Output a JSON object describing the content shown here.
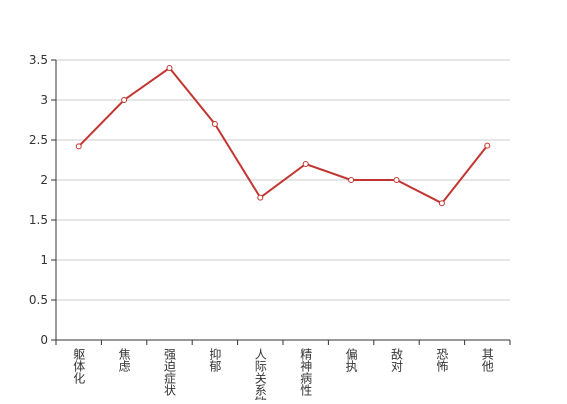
{
  "chart_data": {
    "type": "line",
    "categories": [
      "躯体化",
      "焦虑",
      "强迫症状",
      "抑郁",
      "人际关系敏感",
      "精神病性",
      "偏执",
      "敌对",
      "恐怖",
      "其他"
    ],
    "values": [
      2.42,
      3.0,
      3.4,
      2.7,
      1.78,
      2.2,
      2.0,
      2.0,
      1.71,
      2.43
    ],
    "color": "#c23531",
    "ylim": [
      0,
      3.5
    ],
    "yticks": [
      0,
      0.5,
      1,
      1.5,
      2,
      2.5,
      3,
      3.5
    ],
    "grid": true
  }
}
